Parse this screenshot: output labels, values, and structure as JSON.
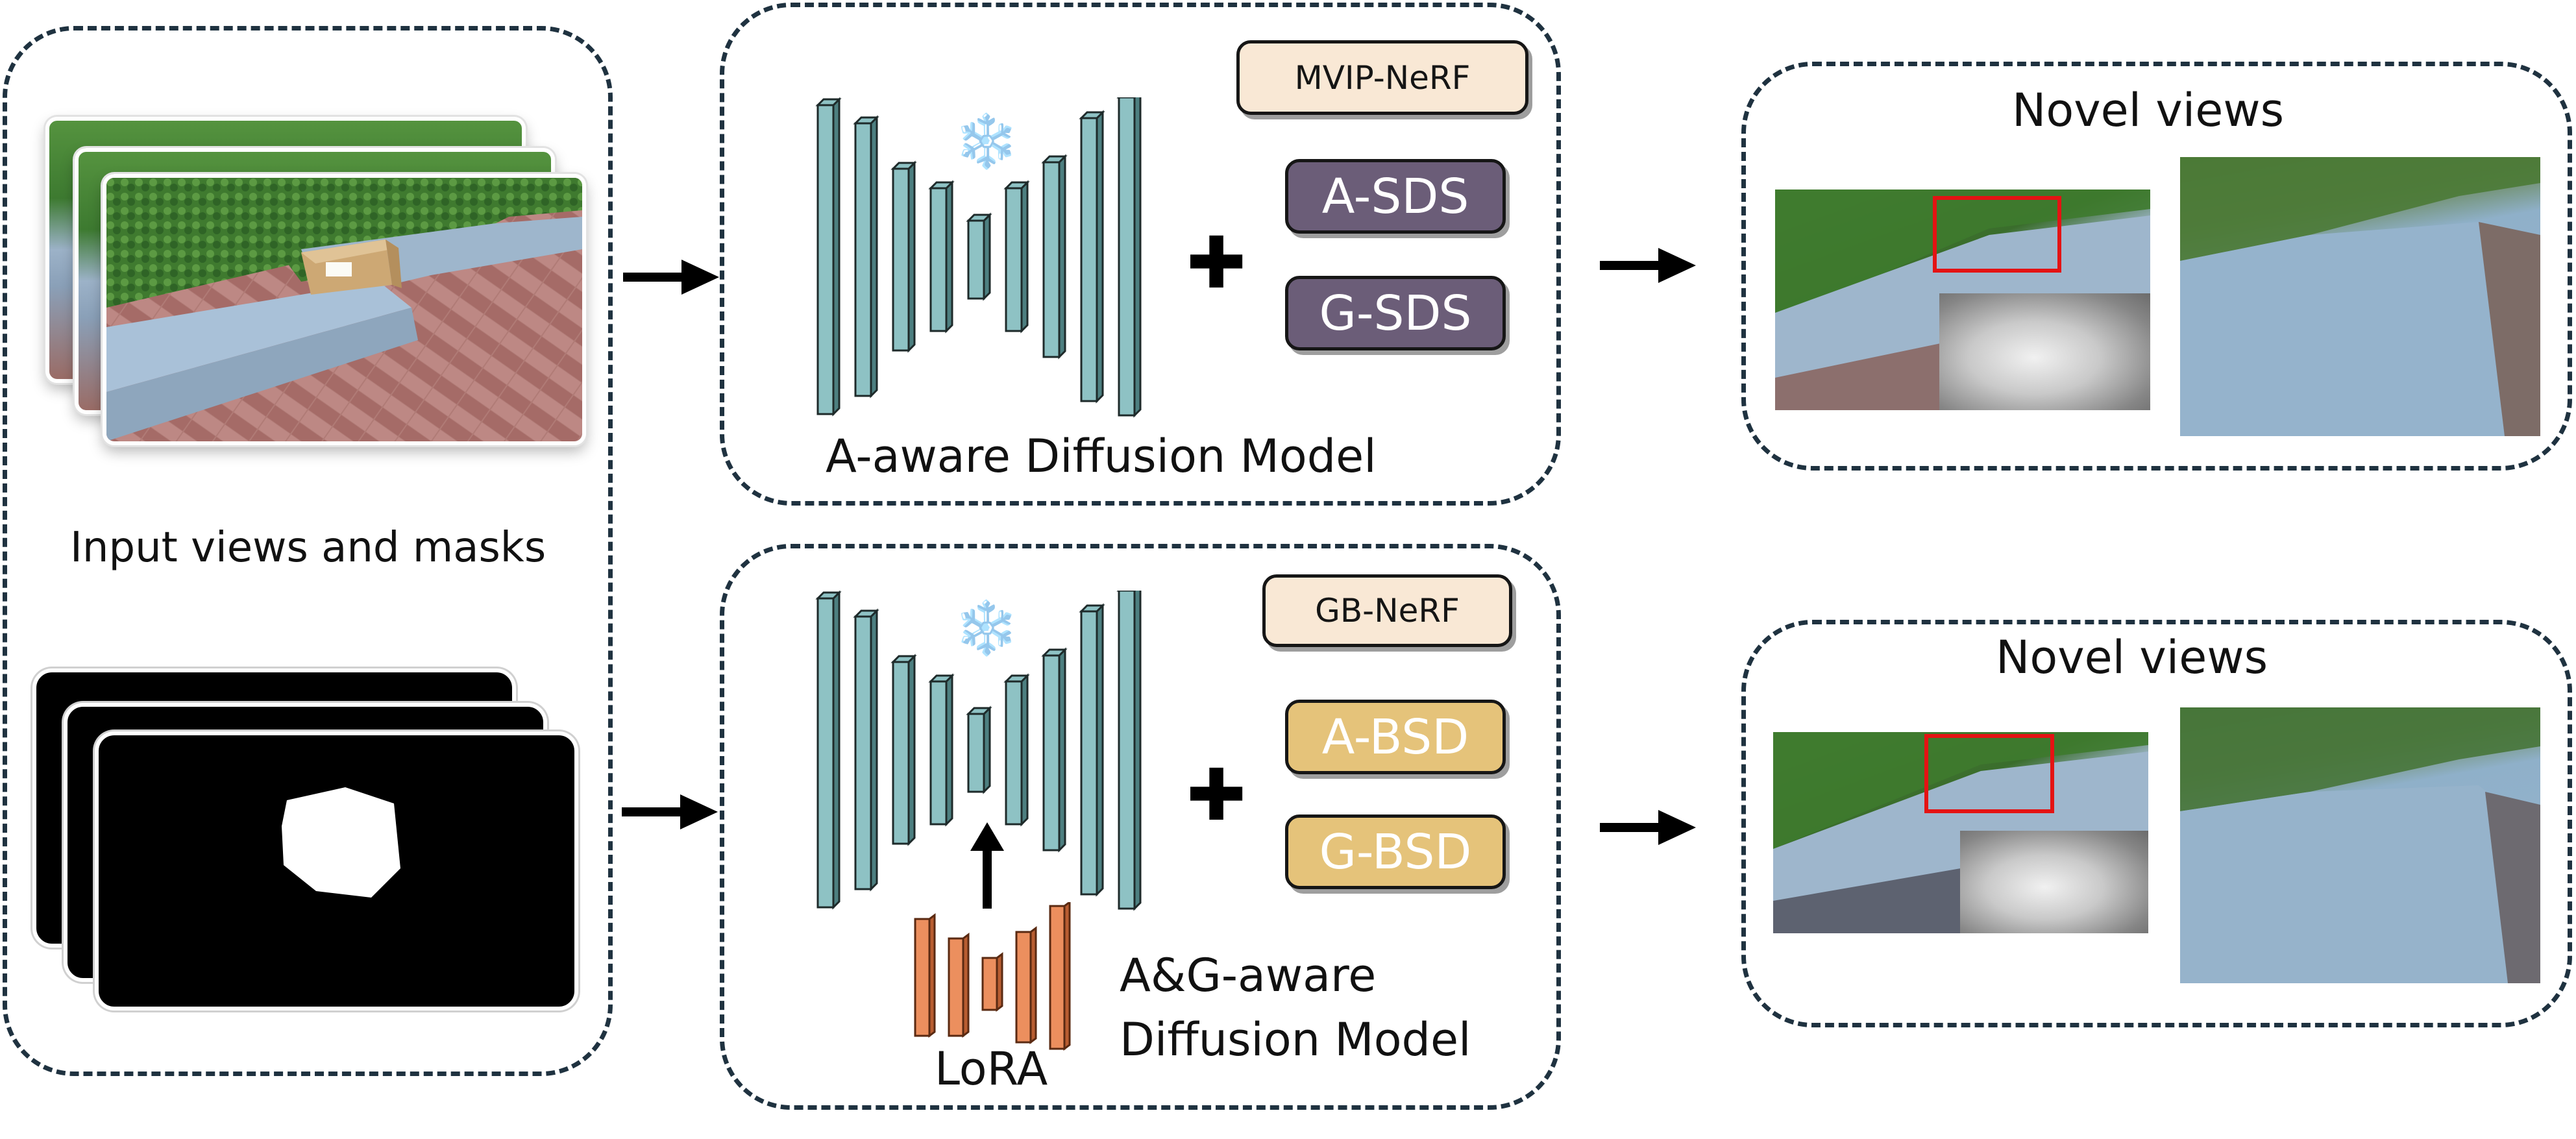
{
  "input_panel": {
    "label": "Input views and masks"
  },
  "top_branch": {
    "model_label": "A-aware Diffusion Model",
    "nerf_badge": "MVIP-NeRF",
    "loss_1": "A-SDS",
    "loss_2": "G-SDS",
    "snowflake": "❄️",
    "plus": "✚"
  },
  "bottom_branch": {
    "model_label_line1": "A&G-aware",
    "model_label_line2": "Diffusion Model",
    "lora_label": "LoRA",
    "nerf_badge": "GB-NeRF",
    "loss_1": "A-BSD",
    "loss_2": "G-BSD",
    "snowflake": "❄️",
    "plus": "✚"
  },
  "output_top": {
    "title": "Novel views"
  },
  "output_bottom": {
    "title": "Novel views"
  },
  "colors": {
    "unet_block": "#8ec2c4",
    "lora_block": "#ec8f5e",
    "sds_pill": "#6b5d78",
    "bsd_pill": "#e5c37a",
    "nerf_badge": "#f9e8d5",
    "zoom_box": "#e41313",
    "panel_border": "#1f3240"
  },
  "icons": {
    "arrow": "arrow-right-icon",
    "up_arrow": "arrow-up-icon",
    "snowflake": "snowflake-icon",
    "plus": "plus-icon"
  }
}
